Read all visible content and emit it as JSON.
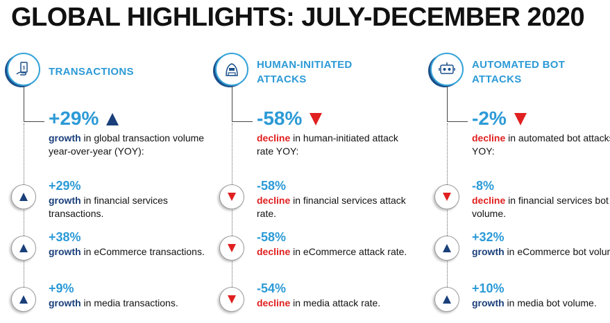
{
  "title": "GLOBAL HIGHLIGHTS: JULY-DECEMBER 2020",
  "columns": [
    {
      "head1": "TRANSACTIONS",
      "head2": "",
      "icon": "hand-phone-icon",
      "big_value": "+29%",
      "big_dir": "up",
      "big_word": "growth",
      "big_rest": " in global transaction volume year-over-year (YOY):",
      "items": [
        {
          "value": "+29%",
          "dir": "up",
          "word": "growth",
          "rest": " in financial services transactions."
        },
        {
          "value": "+38%",
          "dir": "up",
          "word": "growth",
          "rest": " in eCommerce transactions."
        },
        {
          "value": "+9%",
          "dir": "up",
          "word": "growth",
          "rest": " in media transactions."
        }
      ]
    },
    {
      "head1": "HUMAN-INITIATED",
      "head2": "ATTACKS",
      "icon": "hacker-icon",
      "big_value": "-58%",
      "big_dir": "down",
      "big_word": "decline",
      "big_rest": " in human-initiated attack rate YOY:",
      "items": [
        {
          "value": "-58%",
          "dir": "down",
          "word": "decline",
          "rest": " in financial services attack rate."
        },
        {
          "value": "-58%",
          "dir": "down",
          "word": "decline",
          "rest": " in eCommerce attack rate."
        },
        {
          "value": "-54%",
          "dir": "down",
          "word": "decline",
          "rest": " in media attack rate."
        }
      ]
    },
    {
      "head1": "AUTOMATED BOT",
      "head2": "ATTACKS",
      "icon": "bot-icon",
      "big_value": "-2%",
      "big_dir": "down",
      "big_word": "decline",
      "big_rest": " in automated bot attacks YOY:",
      "items": [
        {
          "value": "-8%",
          "dir": "down",
          "word": "decline",
          "rest": " in financial services bot volume."
        },
        {
          "value": "+32%",
          "dir": "up",
          "word": "growth",
          "rest": " in eCommerce bot volume."
        },
        {
          "value": "+10%",
          "dir": "up",
          "word": "growth",
          "rest": " in media bot volume."
        }
      ]
    }
  ],
  "colors": {
    "accent": "#2c9ad6",
    "up": "#1a3f7a",
    "down": "#e02020"
  }
}
